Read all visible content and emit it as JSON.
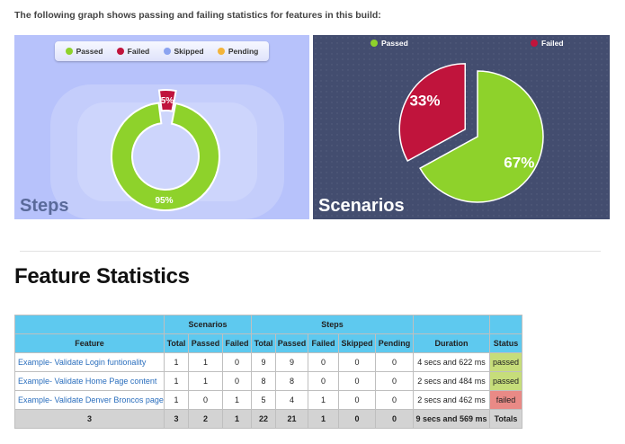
{
  "intro": "The following graph shows passing and failing statistics for features in this build:",
  "colors": {
    "passed": "#8ed22b",
    "failed": "#c0143c",
    "skipped": "#8ba3f0",
    "pending": "#f3b43a",
    "steps_bg": "#b7c2fb",
    "scenarios_bg": "#434d6f",
    "header_blue": "#5ec9ef"
  },
  "steps_chart": {
    "title": "Steps",
    "legend": [
      "Passed",
      "Failed",
      "Skipped",
      "Pending"
    ],
    "passed_label": "95%",
    "failed_label": "5%"
  },
  "scenarios_chart": {
    "title": "Scenarios",
    "legend": [
      "Passed",
      "Failed"
    ],
    "passed_label": "67%",
    "failed_label": "33%"
  },
  "chart_data": [
    {
      "type": "pie",
      "title": "Steps",
      "categories": [
        "Passed",
        "Failed",
        "Skipped",
        "Pending"
      ],
      "values": [
        95,
        5,
        0,
        0
      ],
      "legend": "top"
    },
    {
      "type": "pie",
      "title": "Scenarios",
      "categories": [
        "Passed",
        "Failed"
      ],
      "values": [
        67,
        33
      ],
      "legend": "top"
    }
  ],
  "section_heading": "Feature Statistics",
  "table": {
    "group_scenarios": "Scenarios",
    "group_steps": "Steps",
    "headers": {
      "feature": "Feature",
      "sc_total": "Total",
      "sc_passed": "Passed",
      "sc_failed": "Failed",
      "st_total": "Total",
      "st_passed": "Passed",
      "st_failed": "Failed",
      "st_skipped": "Skipped",
      "st_pending": "Pending",
      "duration": "Duration",
      "status": "Status"
    },
    "rows": [
      {
        "feature": "Example- Validate Login funtionality",
        "sc_total": "1",
        "sc_passed": "1",
        "sc_failed": "0",
        "st_total": "9",
        "st_passed": "9",
        "st_failed": "0",
        "st_skipped": "0",
        "st_pending": "0",
        "duration": "4 secs and 622 ms",
        "status": "passed"
      },
      {
        "feature": "Example- Validate Home Page content",
        "sc_total": "1",
        "sc_passed": "1",
        "sc_failed": "0",
        "st_total": "8",
        "st_passed": "8",
        "st_failed": "0",
        "st_skipped": "0",
        "st_pending": "0",
        "duration": "2 secs and 484 ms",
        "status": "passed"
      },
      {
        "feature": "Example- Validate Denver Broncos page",
        "sc_total": "1",
        "sc_passed": "0",
        "sc_failed": "1",
        "st_total": "5",
        "st_passed": "4",
        "st_failed": "1",
        "st_skipped": "0",
        "st_pending": "0",
        "duration": "2 secs and 462 ms",
        "status": "failed"
      }
    ],
    "totals": {
      "feature": "3",
      "sc_total": "3",
      "sc_passed": "2",
      "sc_failed": "1",
      "st_total": "22",
      "st_passed": "21",
      "st_failed": "1",
      "st_skipped": "0",
      "st_pending": "0",
      "duration": "9 secs and 569 ms",
      "status": "Totals"
    }
  }
}
